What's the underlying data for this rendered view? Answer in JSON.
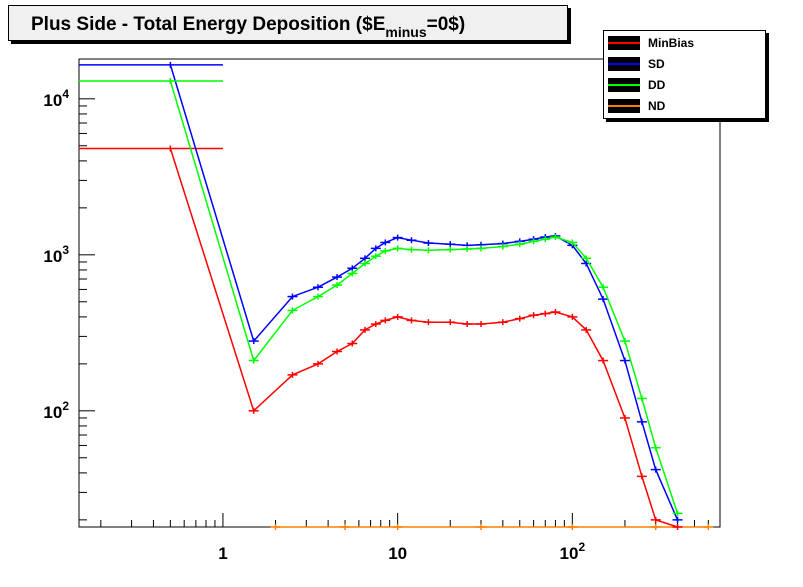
{
  "title": {
    "main": "Plus Side - Total Energy Deposition ($E",
    "sub": "minus",
    "tail": "=0$)"
  },
  "legend": {
    "items": [
      {
        "label": "MinBias",
        "color": "#ff0000"
      },
      {
        "label": "SD",
        "color": "#0000ff"
      },
      {
        "label": "DD",
        "color": "#00ff00"
      },
      {
        "label": "ND",
        "color": "#ff8000"
      }
    ]
  },
  "chart_data": {
    "type": "line",
    "title": "Plus Side - Total Energy Deposition ($E_minus=0$)",
    "xlabel": "",
    "ylabel": "",
    "x_scale": "log",
    "y_scale": "log",
    "xlim": [
      0.15,
      700
    ],
    "ylim": [
      18,
      18000
    ],
    "x_tick_labels": [
      "1",
      "10",
      "10^2"
    ],
    "y_tick_labels": [
      "10^2",
      "10^3",
      "10^4"
    ],
    "grid": false,
    "legend_position": "top-right",
    "series": [
      {
        "name": "MinBias",
        "color": "#ff0000",
        "x": [
          0.5,
          1.5,
          2.5,
          3.5,
          4.5,
          5.5,
          6.5,
          7.5,
          8.5,
          10,
          12,
          15,
          20,
          25,
          30,
          40,
          50,
          60,
          70,
          80,
          100,
          120,
          150,
          200,
          250,
          300,
          400
        ],
        "y": [
          4800,
          100,
          170,
          200,
          240,
          270,
          330,
          360,
          380,
          400,
          380,
          370,
          370,
          360,
          360,
          370,
          390,
          410,
          420,
          430,
          400,
          330,
          210,
          90,
          38,
          20,
          18
        ]
      },
      {
        "name": "SD",
        "color": "#0000ff",
        "x": [
          0.5,
          1.5,
          2.5,
          3.5,
          4.5,
          5.5,
          6.5,
          7.5,
          8.5,
          10,
          12,
          15,
          20,
          25,
          30,
          40,
          50,
          60,
          70,
          80,
          100,
          120,
          150,
          200,
          250,
          300,
          400
        ],
        "y": [
          16500,
          280,
          540,
          620,
          720,
          820,
          950,
          1100,
          1200,
          1290,
          1240,
          1190,
          1170,
          1150,
          1160,
          1180,
          1220,
          1260,
          1300,
          1320,
          1150,
          880,
          520,
          210,
          85,
          42,
          20
        ]
      },
      {
        "name": "DD",
        "color": "#00ff00",
        "x": [
          0.5,
          1.5,
          2.5,
          3.5,
          4.5,
          5.5,
          6.5,
          7.5,
          8.5,
          10,
          12,
          15,
          20,
          25,
          30,
          40,
          50,
          60,
          70,
          80,
          100,
          120,
          150,
          200,
          250,
          300,
          400
        ],
        "y": [
          13000,
          210,
          440,
          540,
          640,
          760,
          880,
          980,
          1060,
          1100,
          1080,
          1070,
          1080,
          1090,
          1100,
          1130,
          1170,
          1220,
          1260,
          1300,
          1200,
          950,
          620,
          280,
          120,
          58,
          22
        ]
      },
      {
        "name": "ND",
        "color": "#ff8000",
        "x": [
          2,
          5,
          10,
          30,
          100,
          300,
          600
        ],
        "y": [
          18,
          18,
          18,
          18,
          18,
          18,
          18
        ]
      }
    ]
  }
}
